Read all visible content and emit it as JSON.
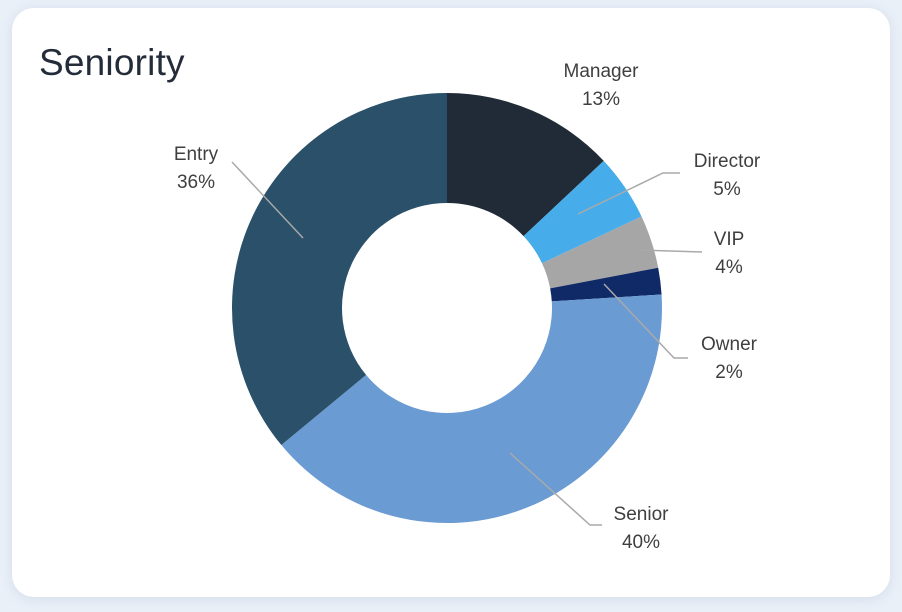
{
  "chart_data": {
    "type": "pie",
    "subtype": "donut",
    "title": "Seniority",
    "categories": [
      "Manager",
      "Director",
      "VIP",
      "Owner",
      "Senior",
      "Entry"
    ],
    "values": [
      13,
      5,
      4,
      2,
      40,
      36
    ],
    "unit": "%",
    "start_angle_deg": 0,
    "direction": "clockwise",
    "legend_position": "none",
    "labels_position": "outside-with-leader-lines",
    "colors": [
      "#212B38",
      "#47ADEA",
      "#A6A6A6",
      "#0F2A66",
      "#6A9BD3",
      "#2A5169"
    ],
    "slices": [
      {
        "label": "Manager",
        "pct_label": "13%"
      },
      {
        "label": "Director",
        "pct_label": "5%"
      },
      {
        "label": "VIP",
        "pct_label": "4%"
      },
      {
        "label": "Owner",
        "pct_label": "2%"
      },
      {
        "label": "Senior",
        "pct_label": "40%"
      },
      {
        "label": "Entry",
        "pct_label": "36%"
      }
    ]
  },
  "styles": {
    "page_bg": "#EAF0F8",
    "card_bg": "#FFFFFF",
    "title_color": "#242C3A",
    "label_color": "#3F3F3F",
    "leader_line_color": "#A9A9A9"
  }
}
